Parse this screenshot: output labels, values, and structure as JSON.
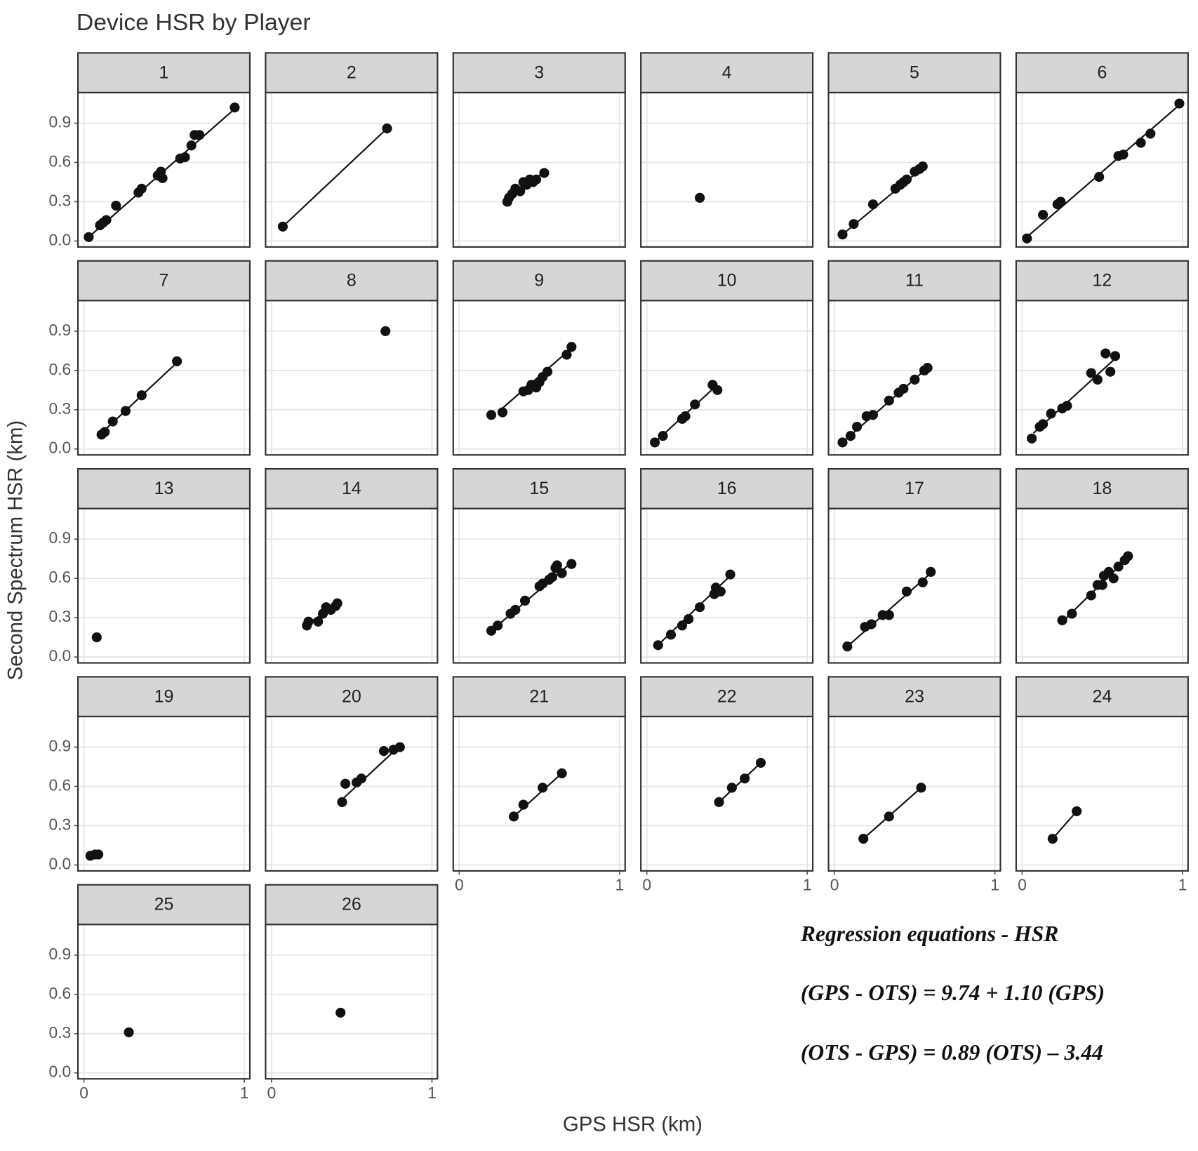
{
  "title": "Device HSR by Player",
  "x_label": "GPS HSR (km)",
  "y_label": "Second Spectrum HSR (km)",
  "annotations": [
    "Regression equations - HSR",
    "(GPS - OTS) = 9.74 + 1.10 (GPS)",
    "(OTS - GPS) = 0.89 (OTS) – 3.44"
  ],
  "chart_data": [
    {
      "type": "scatter",
      "title": "1",
      "x": [
        0.03,
        0.1,
        0.12,
        0.14,
        0.2,
        0.34,
        0.36,
        0.46,
        0.48,
        0.49,
        0.6,
        0.63,
        0.67,
        0.69,
        0.72,
        0.94
      ],
      "values": [
        0.03,
        0.12,
        0.14,
        0.16,
        0.27,
        0.37,
        0.4,
        0.5,
        0.53,
        0.48,
        0.63,
        0.64,
        0.73,
        0.81,
        0.81,
        1.02
      ],
      "fit": {
        "x": [
          0.02,
          0.94
        ],
        "values": [
          0.02,
          1.01
        ]
      },
      "color": "#111111",
      "xlim": [
        -0.023,
        1.02
      ],
      "ylim": [
        -0.028,
        1.116
      ],
      "xticks": [
        0,
        1
      ],
      "yticks": [
        {
          "value": 0,
          "label": "0.0"
        },
        0.3,
        0.6,
        0.9
      ],
      "grid": true
    },
    {
      "type": "scatter",
      "title": "2",
      "x": [
        0.07,
        0.72
      ],
      "values": [
        0.11,
        0.86
      ],
      "fit": {
        "x": [
          0.07,
          0.72
        ],
        "values": [
          0.11,
          0.86
        ]
      },
      "color": "#111111",
      "xlim": [
        -0.023,
        1.02
      ],
      "ylim": [
        -0.028,
        1.116
      ],
      "xticks": [
        0,
        1
      ],
      "yticks": [
        {
          "value": 0,
          "label": "0.0"
        },
        0.3,
        0.6,
        0.9
      ],
      "grid": true
    },
    {
      "type": "scatter",
      "title": "3",
      "x": [
        0.3,
        0.31,
        0.33,
        0.35,
        0.38,
        0.4,
        0.42,
        0.44,
        0.46,
        0.48,
        0.53
      ],
      "values": [
        0.3,
        0.33,
        0.36,
        0.4,
        0.38,
        0.45,
        0.43,
        0.47,
        0.45,
        0.47,
        0.52
      ],
      "fit": {
        "x": [
          0.29,
          0.53
        ],
        "values": [
          0.3,
          0.53
        ]
      },
      "color": "#111111",
      "xlim": [
        -0.023,
        1.02
      ],
      "ylim": [
        -0.028,
        1.116
      ],
      "xticks": [
        0,
        1
      ],
      "yticks": [
        {
          "value": 0,
          "label": "0.0"
        },
        0.3,
        0.6,
        0.9
      ],
      "grid": true
    },
    {
      "type": "scatter",
      "title": "4",
      "x": [
        0.33
      ],
      "values": [
        0.33
      ],
      "color": "#111111",
      "xlim": [
        -0.023,
        1.02
      ],
      "ylim": [
        -0.028,
        1.116
      ],
      "xticks": [
        0,
        1
      ],
      "yticks": [
        {
          "value": 0,
          "label": "0.0"
        },
        0.3,
        0.6,
        0.9
      ],
      "grid": true
    },
    {
      "type": "scatter",
      "title": "5",
      "x": [
        0.05,
        0.12,
        0.24,
        0.38,
        0.41,
        0.43,
        0.45,
        0.5,
        0.53,
        0.55
      ],
      "values": [
        0.05,
        0.13,
        0.28,
        0.4,
        0.43,
        0.45,
        0.47,
        0.53,
        0.55,
        0.57
      ],
      "fit": {
        "x": [
          0.04,
          0.56
        ],
        "values": [
          0.04,
          0.57
        ]
      },
      "color": "#111111",
      "xlim": [
        -0.023,
        1.02
      ],
      "ylim": [
        -0.028,
        1.116
      ],
      "xticks": [
        0,
        1
      ],
      "yticks": [
        {
          "value": 0,
          "label": "0.0"
        },
        0.3,
        0.6,
        0.9
      ],
      "grid": true
    },
    {
      "type": "scatter",
      "title": "6",
      "x": [
        0.03,
        0.13,
        0.22,
        0.24,
        0.48,
        0.6,
        0.63,
        0.74,
        0.8,
        0.98
      ],
      "values": [
        0.02,
        0.2,
        0.28,
        0.3,
        0.49,
        0.65,
        0.66,
        0.75,
        0.82,
        1.05
      ],
      "fit": {
        "x": [
          0.01,
          0.99
        ],
        "values": [
          0.01,
          1.05
        ]
      },
      "color": "#111111",
      "xlim": [
        -0.023,
        1.02
      ],
      "ylim": [
        -0.028,
        1.116
      ],
      "xticks": [
        0,
        1
      ],
      "yticks": [
        {
          "value": 0,
          "label": "0.0"
        },
        0.3,
        0.6,
        0.9
      ],
      "grid": true
    },
    {
      "type": "scatter",
      "title": "7",
      "x": [
        0.11,
        0.13,
        0.18,
        0.26,
        0.36,
        0.58
      ],
      "values": [
        0.11,
        0.13,
        0.21,
        0.29,
        0.41,
        0.67
      ],
      "fit": {
        "x": [
          0.1,
          0.58
        ],
        "values": [
          0.11,
          0.66
        ]
      },
      "color": "#111111",
      "xlim": [
        -0.023,
        1.02
      ],
      "ylim": [
        -0.028,
        1.116
      ],
      "xticks": [
        0,
        1
      ],
      "yticks": [
        {
          "value": 0,
          "label": "0.0"
        },
        0.3,
        0.6,
        0.9
      ],
      "grid": true
    },
    {
      "type": "scatter",
      "title": "8",
      "x": [
        0.71
      ],
      "values": [
        0.9
      ],
      "color": "#111111",
      "xlim": [
        -0.023,
        1.02
      ],
      "ylim": [
        -0.028,
        1.116
      ],
      "xticks": [
        0,
        1
      ],
      "yticks": [
        {
          "value": 0,
          "label": "0.0"
        },
        0.3,
        0.6,
        0.9
      ],
      "grid": true
    },
    {
      "type": "scatter",
      "title": "9",
      "x": [
        0.2,
        0.27,
        0.4,
        0.43,
        0.45,
        0.48,
        0.5,
        0.52,
        0.55,
        0.67,
        0.7
      ],
      "values": [
        0.26,
        0.28,
        0.44,
        0.45,
        0.49,
        0.47,
        0.51,
        0.55,
        0.59,
        0.72,
        0.78
      ],
      "fit": {
        "x": [
          0.24,
          0.7
        ],
        "values": [
          0.28,
          0.77
        ]
      },
      "color": "#111111",
      "xlim": [
        -0.023,
        1.02
      ],
      "ylim": [
        -0.028,
        1.116
      ],
      "xticks": [
        0,
        1
      ],
      "yticks": [
        {
          "value": 0,
          "label": "0.0"
        },
        0.3,
        0.6,
        0.9
      ],
      "grid": true
    },
    {
      "type": "scatter",
      "title": "10",
      "x": [
        0.05,
        0.1,
        0.22,
        0.24,
        0.3,
        0.41,
        0.44
      ],
      "values": [
        0.05,
        0.1,
        0.23,
        0.25,
        0.34,
        0.49,
        0.45
      ],
      "fit": {
        "x": [
          0.04,
          0.43
        ],
        "values": [
          0.04,
          0.48
        ]
      },
      "color": "#111111",
      "xlim": [
        -0.023,
        1.02
      ],
      "ylim": [
        -0.028,
        1.116
      ],
      "xticks": [
        0,
        1
      ],
      "yticks": [
        {
          "value": 0,
          "label": "0.0"
        },
        0.3,
        0.6,
        0.9
      ],
      "grid": true
    },
    {
      "type": "scatter",
      "title": "11",
      "x": [
        0.05,
        0.1,
        0.14,
        0.2,
        0.24,
        0.34,
        0.4,
        0.43,
        0.5,
        0.56,
        0.58
      ],
      "values": [
        0.05,
        0.1,
        0.17,
        0.25,
        0.26,
        0.37,
        0.43,
        0.46,
        0.53,
        0.6,
        0.62
      ],
      "fit": {
        "x": [
          0.04,
          0.58
        ],
        "values": [
          0.04,
          0.62
        ]
      },
      "color": "#111111",
      "xlim": [
        -0.023,
        1.02
      ],
      "ylim": [
        -0.028,
        1.116
      ],
      "xticks": [
        0,
        1
      ],
      "yticks": [
        {
          "value": 0,
          "label": "0.0"
        },
        0.3,
        0.6,
        0.9
      ],
      "grid": true
    },
    {
      "type": "scatter",
      "title": "12",
      "x": [
        0.06,
        0.11,
        0.13,
        0.18,
        0.25,
        0.28,
        0.43,
        0.47,
        0.52,
        0.55,
        0.58
      ],
      "values": [
        0.08,
        0.17,
        0.19,
        0.27,
        0.31,
        0.33,
        0.58,
        0.53,
        0.73,
        0.59,
        0.71
      ],
      "fit": {
        "x": [
          0.07,
          0.57
        ],
        "values": [
          0.12,
          0.68
        ]
      },
      "color": "#111111",
      "xlim": [
        -0.023,
        1.02
      ],
      "ylim": [
        -0.028,
        1.116
      ],
      "xticks": [
        0,
        1
      ],
      "yticks": [
        {
          "value": 0,
          "label": "0.0"
        },
        0.3,
        0.6,
        0.9
      ],
      "grid": true
    },
    {
      "type": "scatter",
      "title": "13",
      "x": [
        0.08
      ],
      "values": [
        0.15
      ],
      "color": "#111111",
      "xlim": [
        -0.023,
        1.02
      ],
      "ylim": [
        -0.028,
        1.116
      ],
      "xticks": [
        0,
        1
      ],
      "yticks": [
        {
          "value": 0,
          "label": "0.0"
        },
        0.3,
        0.6,
        0.9
      ],
      "grid": true
    },
    {
      "type": "scatter",
      "title": "14",
      "x": [
        0.22,
        0.23,
        0.29,
        0.32,
        0.34,
        0.37,
        0.4,
        0.41
      ],
      "values": [
        0.24,
        0.27,
        0.27,
        0.33,
        0.38,
        0.36,
        0.39,
        0.41
      ],
      "fit": {
        "x": [
          0.22,
          0.41
        ],
        "values": [
          0.25,
          0.4
        ]
      },
      "color": "#111111",
      "xlim": [
        -0.023,
        1.02
      ],
      "ylim": [
        -0.028,
        1.116
      ],
      "xticks": [
        0,
        1
      ],
      "yticks": [
        {
          "value": 0,
          "label": "0.0"
        },
        0.3,
        0.6,
        0.9
      ],
      "grid": true
    },
    {
      "type": "scatter",
      "title": "15",
      "x": [
        0.2,
        0.24,
        0.32,
        0.35,
        0.41,
        0.5,
        0.52,
        0.56,
        0.58,
        0.6,
        0.61,
        0.64,
        0.7
      ],
      "values": [
        0.2,
        0.24,
        0.33,
        0.36,
        0.43,
        0.54,
        0.56,
        0.59,
        0.61,
        0.68,
        0.7,
        0.64,
        0.71
      ],
      "fit": {
        "x": [
          0.2,
          0.68
        ],
        "values": [
          0.2,
          0.7
        ]
      },
      "color": "#111111",
      "xlim": [
        -0.023,
        1.02
      ],
      "ylim": [
        -0.028,
        1.116
      ],
      "xticks": [
        0,
        1
      ],
      "yticks": [
        {
          "value": 0,
          "label": "0.0"
        },
        0.3,
        0.6,
        0.9
      ],
      "grid": true
    },
    {
      "type": "scatter",
      "title": "16",
      "x": [
        0.07,
        0.15,
        0.22,
        0.26,
        0.33,
        0.42,
        0.43,
        0.46,
        0.52
      ],
      "values": [
        0.09,
        0.17,
        0.24,
        0.29,
        0.38,
        0.48,
        0.53,
        0.5,
        0.63
      ],
      "fit": {
        "x": [
          0.06,
          0.52
        ],
        "values": [
          0.08,
          0.62
        ]
      },
      "color": "#111111",
      "xlim": [
        -0.023,
        1.02
      ],
      "ylim": [
        -0.028,
        1.116
      ],
      "xticks": [
        0,
        1
      ],
      "yticks": [
        {
          "value": 0,
          "label": "0.0"
        },
        0.3,
        0.6,
        0.9
      ],
      "grid": true
    },
    {
      "type": "scatter",
      "title": "17",
      "x": [
        0.08,
        0.19,
        0.23,
        0.3,
        0.34,
        0.45,
        0.55,
        0.6
      ],
      "values": [
        0.08,
        0.23,
        0.25,
        0.32,
        0.32,
        0.5,
        0.57,
        0.65
      ],
      "fit": {
        "x": [
          0.08,
          0.6
        ],
        "values": [
          0.08,
          0.64
        ]
      },
      "color": "#111111",
      "xlim": [
        -0.023,
        1.02
      ],
      "ylim": [
        -0.028,
        1.116
      ],
      "xticks": [
        0,
        1
      ],
      "yticks": [
        {
          "value": 0,
          "label": "0.0"
        },
        0.3,
        0.6,
        0.9
      ],
      "grid": true
    },
    {
      "type": "scatter",
      "title": "18",
      "x": [
        0.25,
        0.31,
        0.43,
        0.47,
        0.5,
        0.51,
        0.54,
        0.57,
        0.6,
        0.64,
        0.66
      ],
      "values": [
        0.28,
        0.33,
        0.47,
        0.55,
        0.55,
        0.62,
        0.65,
        0.6,
        0.69,
        0.74,
        0.77
      ],
      "fit": {
        "x": [
          0.26,
          0.66
        ],
        "values": [
          0.28,
          0.76
        ]
      },
      "color": "#111111",
      "xlim": [
        -0.023,
        1.02
      ],
      "ylim": [
        -0.028,
        1.116
      ],
      "xticks": [
        0,
        1
      ],
      "yticks": [
        {
          "value": 0,
          "label": "0.0"
        },
        0.3,
        0.6,
        0.9
      ],
      "grid": true
    },
    {
      "type": "scatter",
      "title": "19",
      "x": [
        0.04,
        0.07,
        0.09
      ],
      "values": [
        0.07,
        0.08,
        0.08
      ],
      "fit": {
        "x": [
          0.04,
          0.09
        ],
        "values": [
          0.06,
          0.09
        ]
      },
      "color": "#111111",
      "xlim": [
        -0.023,
        1.02
      ],
      "ylim": [
        -0.028,
        1.116
      ],
      "xticks": [
        0,
        1
      ],
      "yticks": [
        {
          "value": 0,
          "label": "0.0"
        },
        0.3,
        0.6,
        0.9
      ],
      "grid": true
    },
    {
      "type": "scatter",
      "title": "20",
      "x": [
        0.44,
        0.46,
        0.53,
        0.56,
        0.7,
        0.76,
        0.8
      ],
      "values": [
        0.48,
        0.62,
        0.63,
        0.66,
        0.87,
        0.88,
        0.9
      ],
      "fit": {
        "x": [
          0.44,
          0.8
        ],
        "values": [
          0.5,
          0.91
        ]
      },
      "color": "#111111",
      "xlim": [
        -0.023,
        1.02
      ],
      "ylim": [
        -0.028,
        1.116
      ],
      "xticks": [
        0,
        1
      ],
      "yticks": [
        {
          "value": 0,
          "label": "0.0"
        },
        0.3,
        0.6,
        0.9
      ],
      "grid": true
    },
    {
      "type": "scatter",
      "title": "21",
      "x": [
        0.34,
        0.4,
        0.52,
        0.64
      ],
      "values": [
        0.37,
        0.46,
        0.59,
        0.7
      ],
      "fit": {
        "x": [
          0.34,
          0.64
        ],
        "values": [
          0.37,
          0.7
        ]
      },
      "color": "#111111",
      "xlim": [
        -0.023,
        1.02
      ],
      "ylim": [
        -0.028,
        1.116
      ],
      "xticks": [
        0,
        1
      ],
      "yticks": [
        {
          "value": 0,
          "label": "0.0"
        },
        0.3,
        0.6,
        0.9
      ],
      "grid": true
    },
    {
      "type": "scatter",
      "title": "22",
      "x": [
        0.45,
        0.53,
        0.61,
        0.71
      ],
      "values": [
        0.48,
        0.59,
        0.66,
        0.78
      ],
      "fit": {
        "x": [
          0.45,
          0.71
        ],
        "values": [
          0.48,
          0.78
        ]
      },
      "color": "#111111",
      "xlim": [
        -0.023,
        1.02
      ],
      "ylim": [
        -0.028,
        1.116
      ],
      "xticks": [
        0,
        1
      ],
      "yticks": [
        {
          "value": 0,
          "label": "0.0"
        },
        0.3,
        0.6,
        0.9
      ],
      "grid": true
    },
    {
      "type": "scatter",
      "title": "23",
      "x": [
        0.18,
        0.34,
        0.54
      ],
      "values": [
        0.2,
        0.37,
        0.59
      ],
      "fit": {
        "x": [
          0.18,
          0.54
        ],
        "values": [
          0.2,
          0.59
        ]
      },
      "color": "#111111",
      "xlim": [
        -0.023,
        1.02
      ],
      "ylim": [
        -0.028,
        1.116
      ],
      "xticks": [
        0,
        1
      ],
      "yticks": [
        {
          "value": 0,
          "label": "0.0"
        },
        0.3,
        0.6,
        0.9
      ],
      "grid": true
    },
    {
      "type": "scatter",
      "title": "24",
      "x": [
        0.19,
        0.34
      ],
      "values": [
        0.2,
        0.41
      ],
      "fit": {
        "x": [
          0.19,
          0.34
        ],
        "values": [
          0.2,
          0.41
        ]
      },
      "color": "#111111",
      "xlim": [
        -0.023,
        1.02
      ],
      "ylim": [
        -0.028,
        1.116
      ],
      "xticks": [
        0,
        1
      ],
      "yticks": [
        {
          "value": 0,
          "label": "0.0"
        },
        0.3,
        0.6,
        0.9
      ],
      "grid": true
    },
    {
      "type": "scatter",
      "title": "25",
      "x": [
        0.28
      ],
      "values": [
        0.31
      ],
      "color": "#111111",
      "xlim": [
        -0.023,
        1.02
      ],
      "ylim": [
        -0.028,
        1.116
      ],
      "xticks": [
        0,
        1
      ],
      "yticks": [
        {
          "value": 0,
          "label": "0.0"
        },
        0.3,
        0.6,
        0.9
      ],
      "grid": true
    },
    {
      "type": "scatter",
      "title": "26",
      "x": [
        0.43
      ],
      "values": [
        0.46
      ],
      "color": "#111111",
      "xlim": [
        -0.023,
        1.02
      ],
      "ylim": [
        -0.028,
        1.116
      ],
      "xticks": [
        0,
        1
      ],
      "yticks": [
        {
          "value": 0,
          "label": "0.0"
        },
        0.3,
        0.6,
        0.9
      ],
      "grid": true
    }
  ]
}
